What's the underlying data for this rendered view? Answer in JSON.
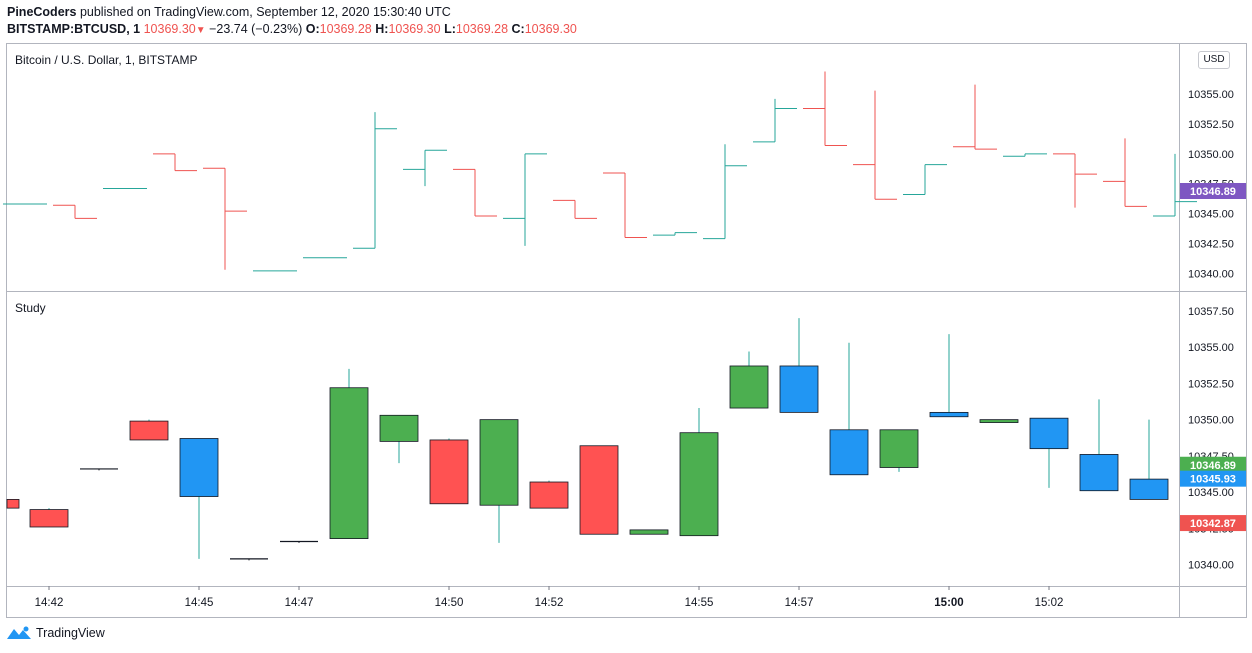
{
  "header": {
    "publisher": "PineCoders",
    "published_text": " published on TradingView.com, September 12, 2020 15:30:40 UTC",
    "symbol": "BITSTAMP:BTCUSD, 1",
    "last": "10369.30",
    "change": "−23.74 (−0.23%)",
    "o_label": "O:",
    "o_value": "10369.28",
    "h_label": "H:",
    "h_value": "10369.30",
    "l_label": "L:",
    "l_value": "10369.28",
    "c_label": "C:",
    "c_value": "10369.30"
  },
  "top_pane_label": "Bitcoin / U.S. Dollar, 1, BITSTAMP",
  "bottom_pane_label": "Study",
  "currency_button": "USD",
  "footer_brand": "TradingView",
  "colors": {
    "up": "#26a69a",
    "down": "#ef5350",
    "candle_green": "#4caf50",
    "candle_red": "#ff5252",
    "candle_blue": "#2196f3",
    "price_tag_purple": "#7e57c2"
  },
  "chart_data": [
    {
      "type": "ohlc",
      "pane": "Bitcoin / U.S. Dollar, 1, BITSTAMP",
      "ylim": [
        10338.6,
        10359.2
      ],
      "y_ticks": [
        10340.0,
        10342.5,
        10345.0,
        10347.5,
        10350.0,
        10352.5,
        10355.0
      ],
      "last_price_tag": 10346.89,
      "bars": [
        {
          "o": 10345.8,
          "h": 10345.8,
          "l": 10345.8,
          "c": 10345.8
        },
        {
          "o": 10345.7,
          "h": 10345.7,
          "l": 10344.6,
          "c": 10344.6
        },
        {
          "o": 10347.1,
          "h": 10347.1,
          "l": 10347.1,
          "c": 10347.1
        },
        {
          "o": 10350.0,
          "h": 10350.0,
          "l": 10348.6,
          "c": 10348.6
        },
        {
          "o": 10348.8,
          "h": 10348.8,
          "l": 10340.3,
          "c": 10345.2
        },
        {
          "o": 10340.2,
          "h": 10340.2,
          "l": 10340.2,
          "c": 10340.2
        },
        {
          "o": 10341.3,
          "h": 10341.3,
          "l": 10341.3,
          "c": 10341.3
        },
        {
          "o": 10342.1,
          "h": 10353.5,
          "l": 10342.1,
          "c": 10352.1
        },
        {
          "o": 10348.7,
          "h": 10350.3,
          "l": 10347.3,
          "c": 10350.3
        },
        {
          "o": 10348.7,
          "h": 10348.7,
          "l": 10344.8,
          "c": 10344.8
        },
        {
          "o": 10344.6,
          "h": 10350.0,
          "l": 10342.3,
          "c": 10350.0
        },
        {
          "o": 10346.1,
          "h": 10346.1,
          "l": 10344.6,
          "c": 10344.6
        },
        {
          "o": 10348.4,
          "h": 10348.4,
          "l": 10343.0,
          "c": 10343.0
        },
        {
          "o": 10343.2,
          "h": 10343.4,
          "l": 10343.2,
          "c": 10343.4
        },
        {
          "o": 10342.9,
          "h": 10350.8,
          "l": 10342.9,
          "c": 10349.0
        },
        {
          "o": 10351.0,
          "h": 10354.6,
          "l": 10351.0,
          "c": 10353.8
        },
        {
          "o": 10353.8,
          "h": 10356.9,
          "l": 10350.7,
          "c": 10350.7
        },
        {
          "o": 10349.1,
          "h": 10355.3,
          "l": 10346.2,
          "c": 10346.2
        },
        {
          "o": 10346.6,
          "h": 10349.1,
          "l": 10346.6,
          "c": 10349.1
        },
        {
          "o": 10350.6,
          "h": 10355.8,
          "l": 10350.4,
          "c": 10350.4
        },
        {
          "o": 10349.8,
          "h": 10350.0,
          "l": 10349.8,
          "c": 10350.0
        },
        {
          "o": 10350.0,
          "h": 10350.0,
          "l": 10345.5,
          "c": 10348.3
        },
        {
          "o": 10347.7,
          "h": 10351.3,
          "l": 10345.6,
          "c": 10345.6
        },
        {
          "o": 10344.8,
          "h": 10350.0,
          "l": 10344.8,
          "c": 10346.0
        }
      ]
    },
    {
      "type": "candlestick",
      "pane": "Study",
      "ylim": [
        10338.6,
        10358.8
      ],
      "y_ticks": [
        10340.0,
        10342.5,
        10345.0,
        10347.5,
        10350.0,
        10352.5,
        10355.0,
        10357.5
      ],
      "price_tags": [
        {
          "value": 10346.89,
          "label": "10346.89",
          "color": "#4caf50"
        },
        {
          "value": 10345.93,
          "label": "10345.93",
          "color": "#2196f3"
        },
        {
          "value": 10342.87,
          "label": "10342.87",
          "color": "#ef5350"
        }
      ],
      "x_tick_labels": [
        {
          "index": 0.5,
          "label": "14:42"
        },
        {
          "index": 3.5,
          "label": "14:45"
        },
        {
          "index": 5.5,
          "label": "14:47"
        },
        {
          "index": 8.5,
          "label": "14:50"
        },
        {
          "index": 10.5,
          "label": "14:52"
        },
        {
          "index": 13.5,
          "label": "14:55"
        },
        {
          "index": 15.5,
          "label": "14:57"
        },
        {
          "index": 18.5,
          "label": "15:00",
          "bold": true
        },
        {
          "index": 20.5,
          "label": "15:02"
        }
      ],
      "partial_first": {
        "top": 10344.5,
        "bottom": 10343.9,
        "color": "red"
      },
      "candles": [
        {
          "top": 10343.8,
          "bottom": 10342.6,
          "high": 10343.9,
          "low": 10342.6,
          "color": "red"
        },
        {
          "top": 10346.6,
          "bottom": 10346.5,
          "high": 10346.6,
          "low": 10346.5,
          "color": "black"
        },
        {
          "top": 10349.9,
          "bottom": 10348.6,
          "high": 10350.0,
          "low": 10348.6,
          "color": "red"
        },
        {
          "top": 10348.7,
          "bottom": 10344.7,
          "high": 10348.7,
          "low": 10340.4,
          "color": "blue"
        },
        {
          "top": 10340.4,
          "bottom": 10340.3,
          "high": 10340.4,
          "low": 10340.3,
          "color": "black"
        },
        {
          "top": 10341.6,
          "bottom": 10341.5,
          "high": 10341.6,
          "low": 10341.5,
          "color": "black"
        },
        {
          "top": 10352.2,
          "bottom": 10341.8,
          "high": 10353.5,
          "low": 10341.8,
          "color": "green"
        },
        {
          "top": 10350.3,
          "bottom": 10348.5,
          "high": 10350.3,
          "low": 10347.0,
          "color": "green"
        },
        {
          "top": 10348.6,
          "bottom": 10344.2,
          "high": 10348.7,
          "low": 10344.2,
          "color": "red"
        },
        {
          "top": 10350.0,
          "bottom": 10344.1,
          "high": 10350.0,
          "low": 10341.5,
          "color": "green"
        },
        {
          "top": 10345.7,
          "bottom": 10343.9,
          "high": 10345.8,
          "low": 10343.9,
          "color": "red"
        },
        {
          "top": 10348.2,
          "bottom": 10342.1,
          "high": 10348.2,
          "low": 10342.1,
          "color": "red"
        },
        {
          "top": 10342.4,
          "bottom": 10342.1,
          "high": 10342.4,
          "low": 10342.1,
          "color": "green"
        },
        {
          "top": 10349.1,
          "bottom": 10342.0,
          "high": 10350.8,
          "low": 10342.0,
          "color": "green"
        },
        {
          "top": 10353.7,
          "bottom": 10350.8,
          "high": 10354.7,
          "low": 10350.8,
          "color": "green"
        },
        {
          "top": 10353.7,
          "bottom": 10350.5,
          "high": 10357.0,
          "low": 10350.5,
          "color": "blue"
        },
        {
          "top": 10349.3,
          "bottom": 10346.2,
          "high": 10355.3,
          "low": 10346.2,
          "color": "blue"
        },
        {
          "top": 10349.3,
          "bottom": 10346.7,
          "high": 10349.3,
          "low": 10346.4,
          "color": "green"
        },
        {
          "top": 10350.5,
          "bottom": 10350.2,
          "high": 10355.9,
          "low": 10350.2,
          "color": "blue"
        },
        {
          "top": 10350.0,
          "bottom": 10349.8,
          "high": 10350.0,
          "low": 10349.8,
          "color": "green"
        },
        {
          "top": 10350.1,
          "bottom": 10348.0,
          "high": 10350.1,
          "low": 10345.3,
          "color": "blue"
        },
        {
          "top": 10347.6,
          "bottom": 10345.1,
          "high": 10351.4,
          "low": 10345.1,
          "color": "blue"
        },
        {
          "top": 10345.9,
          "bottom": 10344.5,
          "high": 10350.0,
          "low": 10344.5,
          "color": "blue"
        }
      ]
    }
  ]
}
